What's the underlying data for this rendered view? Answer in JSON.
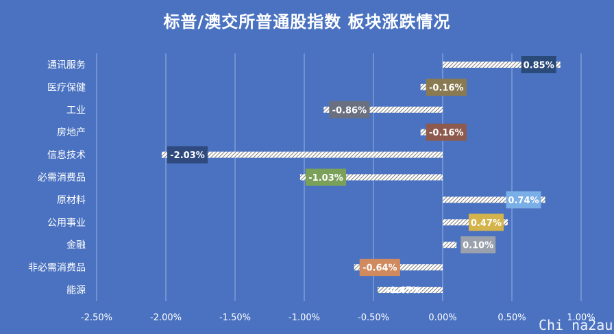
{
  "chart_data": {
    "type": "bar",
    "orientation": "horizontal",
    "title": "标普/澳交所普通股指数 板块涨跌情况",
    "categories": [
      "通讯服务",
      "医疗保健",
      "工业",
      "房地产",
      "信息技术",
      "必需消费品",
      "原材料",
      "公用事业",
      "金融",
      "非必需消费品",
      "能源"
    ],
    "values": [
      0.85,
      -0.16,
      -0.86,
      -0.16,
      -2.03,
      -1.03,
      0.74,
      0.47,
      0.1,
      -0.64,
      -0.47
    ],
    "data_labels": [
      "0.85%",
      "-0.16%",
      "-0.86%",
      "-0.16%",
      "-2.03%",
      "-1.03%",
      "0.74%",
      "0.47%",
      "0.10%",
      "-0.64%",
      "-0.47%"
    ],
    "label_colors": [
      "#2a4a7a",
      "#8a7a52",
      "#6a7080",
      "#8e5a4e",
      "#2e4a7e",
      "#7aa05a",
      "#7aaee6",
      "#d4b44a",
      "#9aa0ac",
      "#d08a5e",
      ""
    ],
    "xlim": [
      -2.5,
      1.0
    ],
    "x_ticks": [
      -2.5,
      -2.0,
      -1.5,
      -1.0,
      -0.5,
      0.0,
      0.5,
      1.0
    ],
    "x_tick_labels": [
      "-2.50%",
      "-2.00%",
      "-1.50%",
      "-1.00%",
      "-0.50%",
      "0.00%",
      "0.50%",
      "1.00%"
    ],
    "grid": true,
    "legend": "none",
    "bar_style": "hatched"
  },
  "watermark": "Chi na2au"
}
